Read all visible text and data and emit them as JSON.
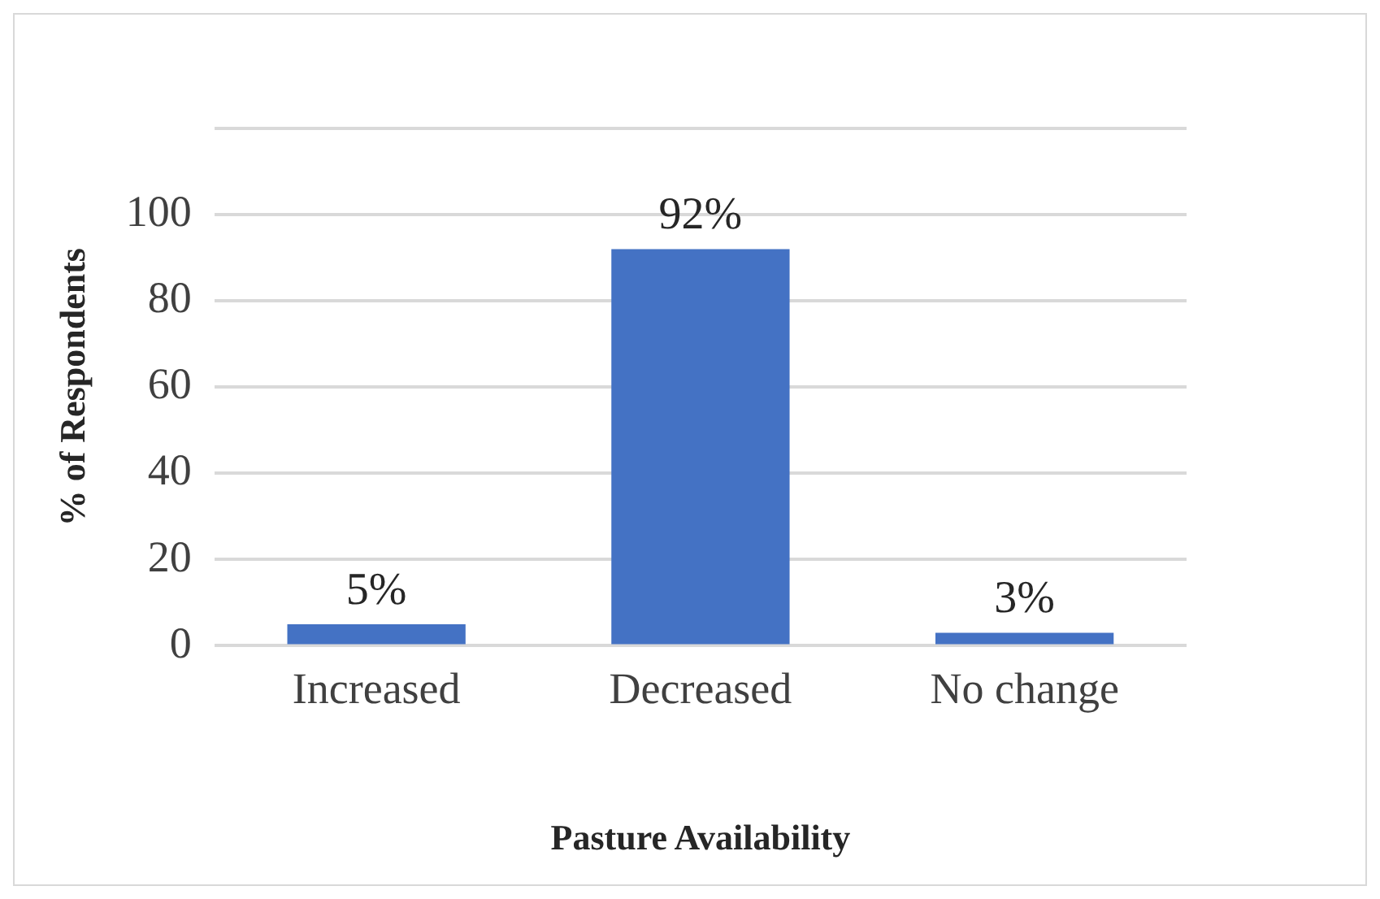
{
  "chart_data": {
    "type": "bar",
    "xlabel": "Pasture Availability",
    "ylabel": "% of Respondents",
    "categories": [
      "Increased",
      "Decreased",
      "No change"
    ],
    "values": [
      5,
      92,
      3
    ],
    "value_labels": [
      "5%",
      "92%",
      "3%"
    ],
    "color": "#4472c4",
    "ylim": [
      0,
      120
    ],
    "yticks": [
      0,
      20,
      40,
      60,
      80,
      100,
      {
        "value": 120,
        "label": null
      }
    ],
    "grid": "y",
    "legend": false
  }
}
